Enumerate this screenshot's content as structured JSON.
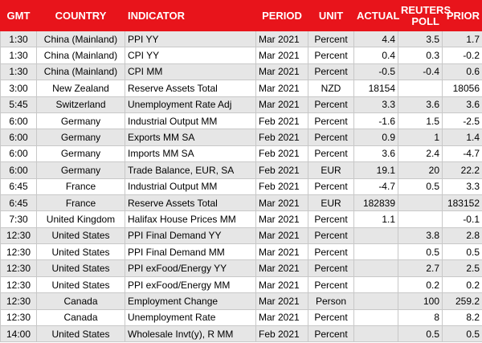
{
  "table": {
    "header": [
      "GMT",
      "COUNTRY",
      "INDICATOR",
      "PERIOD",
      "UNIT",
      "ACTUAL",
      "REUTERS POLL",
      "PRIOR"
    ],
    "rows": [
      [
        "1:30",
        "China (Mainland)",
        "PPI YY",
        "Mar 2021",
        "Percent",
        4.4,
        3.5,
        1.7
      ],
      [
        "1:30",
        "China (Mainland)",
        "CPI YY",
        "Mar 2021",
        "Percent",
        0.4,
        0.3,
        -0.2
      ],
      [
        "1:30",
        "China (Mainland)",
        "CPI MM",
        "Mar 2021",
        "Percent",
        -0.5,
        -0.4,
        0.6
      ],
      [
        "3:00",
        "New Zealand",
        "Reserve Assets Total",
        "Mar 2021",
        "NZD",
        18154,
        null,
        18056
      ],
      [
        "5:45",
        "Switzerland",
        "Unemployment Rate Adj",
        "Mar 2021",
        "Percent",
        3.3,
        3.6,
        3.6
      ],
      [
        "6:00",
        "Germany",
        "Industrial Output MM",
        "Feb 2021",
        "Percent",
        -1.6,
        1.5,
        -2.5
      ],
      [
        "6:00",
        "Germany",
        "Exports MM SA",
        "Feb 2021",
        "Percent",
        0.9,
        1,
        1.4
      ],
      [
        "6:00",
        "Germany",
        "Imports MM SA",
        "Feb 2021",
        "Percent",
        3.6,
        2.4,
        -4.7
      ],
      [
        "6:00",
        "Germany",
        "Trade Balance, EUR, SA",
        "Feb 2021",
        "EUR",
        19.1,
        20,
        22.2
      ],
      [
        "6:45",
        "France",
        "Industrial Output MM",
        "Feb 2021",
        "Percent",
        -4.7,
        0.5,
        3.3
      ],
      [
        "6:45",
        "France",
        "Reserve Assets Total",
        "Mar 2021",
        "EUR",
        182839,
        null,
        183152
      ],
      [
        "7:30",
        "United Kingdom",
        "Halifax House Prices MM",
        "Mar 2021",
        "Percent",
        1.1,
        null,
        -0.1
      ],
      [
        "12:30",
        "United States",
        "PPI Final Demand YY",
        "Mar 2021",
        "Percent",
        null,
        3.8,
        2.8
      ],
      [
        "12:30",
        "United States",
        "PPI Final Demand MM",
        "Mar 2021",
        "Percent",
        null,
        0.5,
        0.5
      ],
      [
        "12:30",
        "United States",
        "PPI exFood/Energy YY",
        "Mar 2021",
        "Percent",
        null,
        2.7,
        2.5
      ],
      [
        "12:30",
        "United States",
        "PPI exFood/Energy MM",
        "Mar 2021",
        "Percent",
        null,
        0.2,
        0.2
      ],
      [
        "12:30",
        "Canada",
        "Employment Change",
        "Mar 2021",
        "Person",
        null,
        100,
        259.2
      ],
      [
        "12:30",
        "Canada",
        "Unemployment Rate",
        "Mar 2021",
        "Percent",
        null,
        8,
        8.2
      ],
      [
        "14:00",
        "United States",
        "Wholesale Invt(y), R MM",
        "Feb 2021",
        "Percent",
        null,
        0.5,
        0.5
      ]
    ]
  }
}
